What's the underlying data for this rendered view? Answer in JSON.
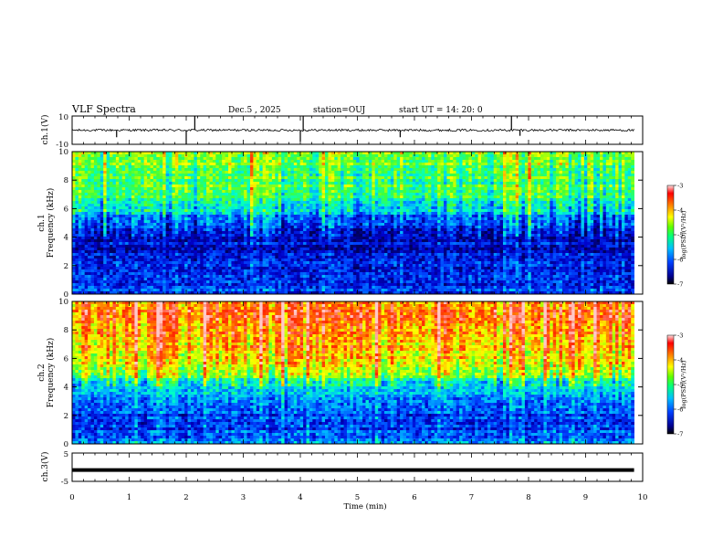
{
  "header": {
    "title": "VLF Spectra",
    "date": "Dec.5 , 2025",
    "station": "station=OUJ",
    "start": "start UT =   14: 20: 0"
  },
  "colors": {
    "spectrum_stops": [
      "#000080",
      "#0000ff",
      "#00a0ff",
      "#00ffc0",
      "#40ff40",
      "#c0ff00",
      "#ffff00",
      "#ff8000",
      "#ff0000",
      "#ffc0c0"
    ],
    "trace": "#000000"
  },
  "chart_data": [
    {
      "type": "line",
      "name": "ch1-waveform",
      "ylabel": "ch.1(V)",
      "ylim": [
        -10,
        10
      ],
      "yticks": [
        "10",
        "-10"
      ],
      "xlim": [
        0,
        10
      ],
      "baseline": 0,
      "spikes_min": [
        0.78,
        2.0,
        2.15,
        4.0,
        4.05,
        5.75,
        7.7,
        7.85
      ],
      "spike_values": [
        -5,
        -10,
        10,
        -8,
        10,
        -5,
        10,
        -4
      ]
    },
    {
      "type": "heatmap",
      "name": "ch1-spectrogram",
      "ylabel": "ch.1\nFrequency (kHz)",
      "ylim": [
        0,
        10
      ],
      "yticks": [
        "0",
        "2",
        "4",
        "6",
        "8",
        "10"
      ],
      "xlim": [
        0,
        10
      ],
      "data_end_min": 9.85,
      "freq_profile_log_psd": [
        -6.2,
        -6.5,
        -6.4,
        -6.6,
        -6.5,
        -6.3,
        -5.6,
        -5.2,
        -5.0,
        -4.9,
        -4.9
      ],
      "high_band_boost": 0.0,
      "colorbar": {
        "label": "log(PSD)(V²/Hz)",
        "range": [
          -7,
          -3
        ],
        "ticks": [
          "-3",
          "-4",
          "-5",
          "-6",
          "-7"
        ]
      }
    },
    {
      "type": "heatmap",
      "name": "ch2-spectrogram",
      "ylabel": "ch.2\nFrequency (kHz)",
      "ylim": [
        0,
        10
      ],
      "yticks": [
        "0",
        "2",
        "4",
        "6",
        "8",
        "10"
      ],
      "xlim": [
        0,
        10
      ],
      "data_end_min": 9.85,
      "freq_profile_log_psd": [
        -6.0,
        -6.3,
        -6.2,
        -6.1,
        -5.6,
        -4.8,
        -4.3,
        -4.1,
        -3.9,
        -3.8,
        -3.8
      ],
      "high_band_boost": 0.3,
      "colorbar": {
        "label": "log(PSD)(V²/Hz)",
        "range": [
          -7,
          -3
        ],
        "ticks": [
          "-3",
          "-4",
          "-5",
          "-6",
          "-7"
        ]
      }
    },
    {
      "type": "line",
      "name": "ch3-waveform",
      "ylabel": "ch.3(V)",
      "ylim": [
        -5,
        5
      ],
      "yticks": [
        "5",
        "-5"
      ],
      "xlim": [
        0,
        10
      ],
      "value": -1,
      "data_end_min": 9.85
    }
  ],
  "x_axis": {
    "label": "Time (min)",
    "ticks": [
      "0",
      "1",
      "2",
      "3",
      "4",
      "5",
      "6",
      "7",
      "8",
      "9",
      "10"
    ],
    "range": [
      0,
      10
    ]
  }
}
